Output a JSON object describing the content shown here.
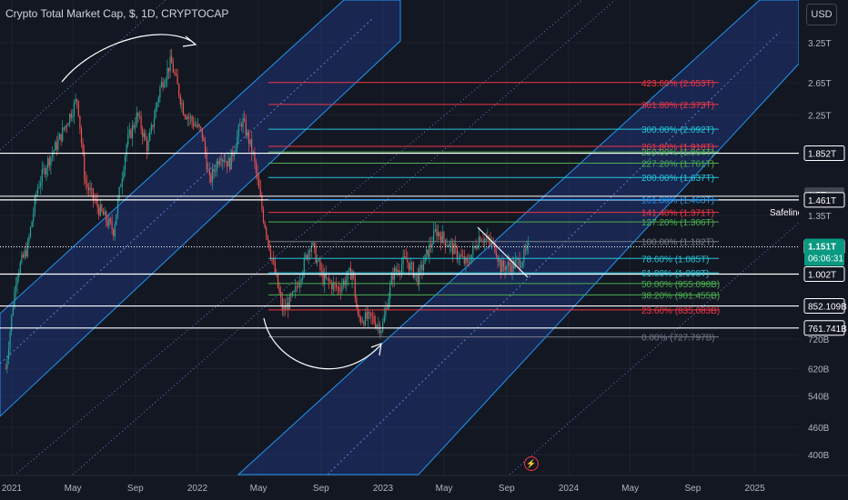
{
  "header": {
    "title": "Crypto Total Market Cap, $, 1D, CRYPTOCAP",
    "currency_button": "USD"
  },
  "colors": {
    "background": "#131722",
    "channel_fill": "#1e3a8a",
    "channel_border": "#2196f3",
    "channel_mid": "#5b7fd6",
    "candle_up": "#26a69a",
    "candle_down": "#ef5350",
    "fib_red": "#f23645",
    "fib_teal": "#26c6da",
    "fib_green": "#4caf50",
    "axis_text": "#b2b5be"
  },
  "chart_data": {
    "type": "candlestick",
    "title": "Crypto Total Market Cap, $, 1D, CRYPTOCAP",
    "y_scale": "log",
    "y_range": [
      "360B",
      "3.6T"
    ],
    "x_range": [
      "2020-12",
      "2025-12"
    ],
    "y_ticks": [
      "3.25T",
      "2.65T",
      "2.25T",
      "1.85T",
      "1.5T",
      "1.35T",
      "1.151T",
      "1.002T",
      "852.109B",
      "761.741B",
      "720B",
      "620B",
      "540B",
      "460B",
      "400B"
    ],
    "x_ticks": [
      "2021",
      "May",
      "Sep",
      "2022",
      "May",
      "Sep",
      "2023",
      "May",
      "Sep",
      "2024",
      "May",
      "Sep",
      "2025"
    ],
    "current_price": {
      "label": "1.151T",
      "countdown": "06:06:31"
    },
    "price_labels": [
      {
        "label": "1.852T"
      },
      {
        "label": "1.5T"
      },
      {
        "label": "1.461T"
      },
      {
        "label": "1.151T"
      },
      {
        "label": "1.002T"
      },
      {
        "label": "852.109B"
      },
      {
        "label": "761.741B"
      }
    ],
    "horizontal_lines": [
      {
        "label": "1.852T"
      },
      {
        "label": "1.461T",
        "name": "Safeline"
      },
      {
        "label": "1.151T"
      },
      {
        "label": "1.002T"
      },
      {
        "label": "852.109B"
      },
      {
        "label": "761.741B"
      }
    ],
    "fibonacci_levels": [
      {
        "ratio": "423.60%",
        "value": "2.653T"
      },
      {
        "ratio": "361.80%",
        "value": "2.373T"
      },
      {
        "ratio": "300.00%",
        "value": "2.092T"
      },
      {
        "ratio": "261.80%",
        "value": "1.918T"
      },
      {
        "ratio": "250.00%",
        "value": "1.864T"
      },
      {
        "ratio": "227.20%",
        "value": "1.761T"
      },
      {
        "ratio": "200.00%",
        "value": "1.637T"
      },
      {
        "ratio": "161.80%",
        "value": "1.463T"
      },
      {
        "ratio": "141.40%",
        "value": "1.371T"
      },
      {
        "ratio": "127.20%",
        "value": "1.306T"
      },
      {
        "ratio": "100.00%",
        "value": "1.182T"
      },
      {
        "ratio": "78.60%",
        "value": "1.085T"
      },
      {
        "ratio": "61.80%",
        "value": "1.008T"
      },
      {
        "ratio": "50.00%",
        "value": "955.098B"
      },
      {
        "ratio": "38.20%",
        "value": "901.455B"
      },
      {
        "ratio": "23.60%",
        "value": "835.083B"
      },
      {
        "ratio": "0.00%",
        "value": "727.797B"
      }
    ],
    "close_series": [
      {
        "date": "2020-12-20",
        "value": 0.62
      },
      {
        "date": "2021-01-10",
        "value": 1.0
      },
      {
        "date": "2021-02-01",
        "value": 1.15
      },
      {
        "date": "2021-02-20",
        "value": 1.55
      },
      {
        "date": "2021-03-10",
        "value": 1.75
      },
      {
        "date": "2021-04-01",
        "value": 1.95
      },
      {
        "date": "2021-05-10",
        "value": 2.45
      },
      {
        "date": "2021-05-25",
        "value": 1.6
      },
      {
        "date": "2021-06-20",
        "value": 1.4
      },
      {
        "date": "2021-07-20",
        "value": 1.25
      },
      {
        "date": "2021-08-15",
        "value": 1.95
      },
      {
        "date": "2021-09-05",
        "value": 2.25
      },
      {
        "date": "2021-09-25",
        "value": 1.9
      },
      {
        "date": "2021-10-20",
        "value": 2.6
      },
      {
        "date": "2021-11-10",
        "value": 2.95
      },
      {
        "date": "2021-12-05",
        "value": 2.3
      },
      {
        "date": "2022-01-10",
        "value": 2.05
      },
      {
        "date": "2022-01-25",
        "value": 1.6
      },
      {
        "date": "2022-02-15",
        "value": 1.85
      },
      {
        "date": "2022-03-05",
        "value": 1.75
      },
      {
        "date": "2022-03-30",
        "value": 2.2
      },
      {
        "date": "2022-04-20",
        "value": 1.85
      },
      {
        "date": "2022-05-10",
        "value": 1.35
      },
      {
        "date": "2022-06-18",
        "value": 0.83
      },
      {
        "date": "2022-07-10",
        "value": 0.9
      },
      {
        "date": "2022-08-12",
        "value": 1.18
      },
      {
        "date": "2022-09-05",
        "value": 0.98
      },
      {
        "date": "2022-10-05",
        "value": 0.93
      },
      {
        "date": "2022-11-02",
        "value": 1.02
      },
      {
        "date": "2022-11-12",
        "value": 0.8
      },
      {
        "date": "2022-12-10",
        "value": 0.8
      },
      {
        "date": "2022-12-30",
        "value": 0.76
      },
      {
        "date": "2023-01-20",
        "value": 1.0
      },
      {
        "date": "2023-02-15",
        "value": 1.08
      },
      {
        "date": "2023-03-10",
        "value": 0.98
      },
      {
        "date": "2023-04-15",
        "value": 1.25
      },
      {
        "date": "2023-05-15",
        "value": 1.15
      },
      {
        "date": "2023-06-15",
        "value": 1.05
      },
      {
        "date": "2023-07-10",
        "value": 1.22
      },
      {
        "date": "2023-08-10",
        "value": 1.15
      },
      {
        "date": "2023-08-20",
        "value": 1.04
      },
      {
        "date": "2023-09-15",
        "value": 1.05
      },
      {
        "date": "2023-10-01",
        "value": 1.08
      },
      {
        "date": "2023-10-16",
        "value": 1.151
      }
    ]
  },
  "annotations": {
    "safeline_label": "Safeline"
  }
}
